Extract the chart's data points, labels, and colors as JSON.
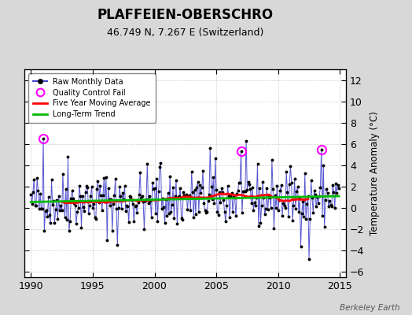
{
  "title": "PLAFFEIEN-OBERSCHRO",
  "subtitle": "46.749 N, 7.267 E (Switzerland)",
  "ylabel": "Temperature Anomaly (°C)",
  "watermark": "Berkeley Earth",
  "xlim": [
    1989.5,
    2015.5
  ],
  "ylim": [
    -6.5,
    13.0
  ],
  "yticks": [
    -6,
    -4,
    -2,
    0,
    2,
    4,
    6,
    8,
    10,
    12
  ],
  "xticks": [
    1990,
    1995,
    2000,
    2005,
    2010,
    2015
  ],
  "bg_color": "#d8d8d8",
  "plot_bg_color": "#ffffff",
  "raw_line_color": "#4444cc",
  "raw_dot_color": "#000000",
  "moving_avg_color": "#ff0000",
  "trend_color": "#00bb00",
  "qc_fail_color": "#ff00ff",
  "seed": 42,
  "figsize": [
    5.24,
    4.0
  ],
  "dpi": 100
}
